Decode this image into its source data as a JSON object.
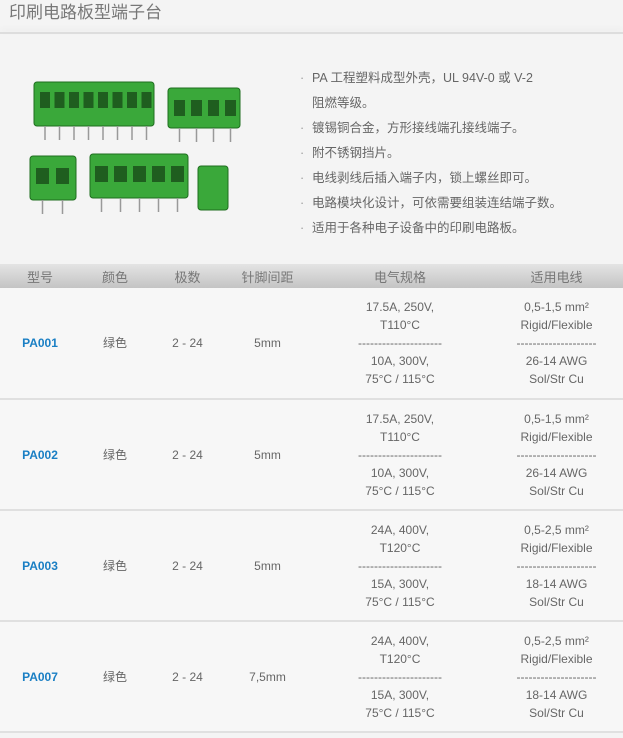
{
  "title": "印刷电路板型端子台",
  "features": [
    "PA 工程塑料成型外壳，UL 94V-0 或 V-2",
    "阻燃等级。",
    "镀锡铜合金，方形接线端孔接线端子。",
    "附不锈钢挡片。",
    "电线剥线后插入端子内，锁上螺丝即可。",
    "电路模块化设计，可依需要组装连结端子数。",
    "适用于各种电子设备中的印刷电路板。"
  ],
  "table": {
    "headers": [
      "型号",
      "颜色",
      "极数",
      "针脚间距",
      "电气规格",
      "适用电线"
    ],
    "rows": [
      {
        "model": "PA001",
        "color": "绿色",
        "poles": "2 - 24",
        "pitch": "5mm",
        "elec": [
          "17.5A, 250V,",
          "T110°C",
          "---------------------",
          "10A, 300V,",
          "75°C / 115°C"
        ],
        "wire": [
          "0,5-1,5 mm²",
          "Rigid/Flexible",
          "--------------------",
          "26-14 AWG",
          "Sol/Str Cu"
        ]
      },
      {
        "model": "PA002",
        "color": "绿色",
        "poles": "2 - 24",
        "pitch": "5mm",
        "elec": [
          "17.5A, 250V,",
          "T110°C",
          "---------------------",
          "10A, 300V,",
          "75°C / 115°C"
        ],
        "wire": [
          "0,5-1,5 mm²",
          "Rigid/Flexible",
          "--------------------",
          "26-14 AWG",
          "Sol/Str Cu"
        ]
      },
      {
        "model": "PA003",
        "color": "绿色",
        "poles": "2 - 24",
        "pitch": "5mm",
        "elec": [
          "24A, 400V,",
          "T120°C",
          "---------------------",
          "15A, 300V,",
          "75°C / 115°C"
        ],
        "wire": [
          "0,5-2,5 mm²",
          "Rigid/Flexible",
          "--------------------",
          "18-14 AWG",
          "Sol/Str Cu"
        ]
      },
      {
        "model": "PA007",
        "color": "绿色",
        "poles": "2 - 24",
        "pitch": "7,5mm",
        "elec": [
          "24A, 400V,",
          "T120°C",
          "---------------------",
          "15A, 300V,",
          "75°C / 115°C"
        ],
        "wire": [
          "0,5-2,5 mm²",
          "Rigid/Flexible",
          "--------------------",
          "18-14 AWG",
          "Sol/Str Cu"
        ]
      }
    ]
  },
  "colors": {
    "accent": "#1a7fc4",
    "product": "#3aa83a"
  }
}
